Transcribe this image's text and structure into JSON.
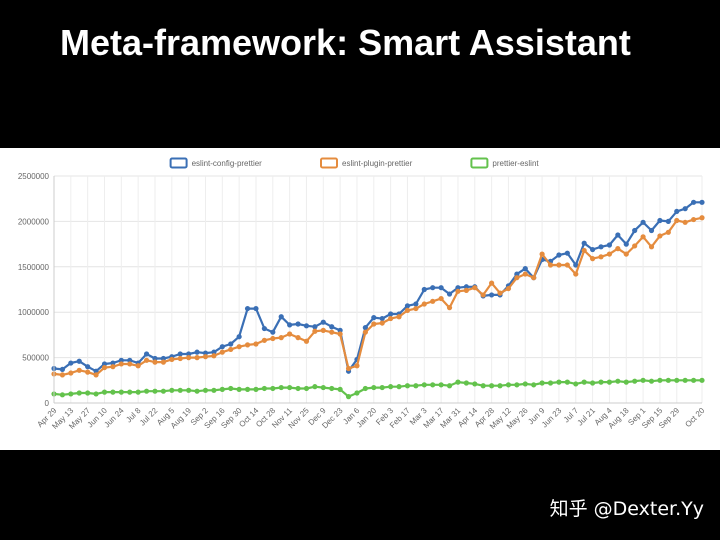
{
  "slide": {
    "title": "Meta-framework: Smart Assistant",
    "watermark": "知乎 @Dexter.Yy"
  },
  "chart_data": {
    "type": "line",
    "title": "",
    "xlabel": "",
    "ylabel": "",
    "ylim": [
      0,
      2500000
    ],
    "yticks": [
      0,
      500000,
      1000000,
      1500000,
      2000000,
      2500000
    ],
    "grid": true,
    "legend_position": "top-center",
    "x": [
      "Apr 29",
      "May 6",
      "May 13",
      "May 20",
      "May 27",
      "Jun 3",
      "Jun 10",
      "Jun 17",
      "Jun 24",
      "Jul 1",
      "Jul 8",
      "Jul 15",
      "Jul 22",
      "Jul 29",
      "Aug 5",
      "Aug 12",
      "Aug 19",
      "Aug 26",
      "Sep 2",
      "Sep 9",
      "Sep 16",
      "Sep 23",
      "Sep 30",
      "Oct 7",
      "Oct 14",
      "Oct 21",
      "Oct 28",
      "Nov 4",
      "Nov 11",
      "Nov 18",
      "Nov 25",
      "Dec 2",
      "Dec 9",
      "Dec 16",
      "Dec 23",
      "Dec 30",
      "Jan 6",
      "Jan 13",
      "Jan 20",
      "Jan 27",
      "Feb 3",
      "Feb 10",
      "Feb 17",
      "Feb 24",
      "Mar 3",
      "Mar 10",
      "Mar 17",
      "Mar 24",
      "Mar 31",
      "Apr 7",
      "Apr 14",
      "Apr 21",
      "Apr 28",
      "May 5",
      "May 12",
      "May 19",
      "May 26",
      "Jun 2",
      "Jun 9",
      "Jun 16",
      "Jun 23",
      "Jun 30",
      "Jul 7",
      "Jul 14",
      "Jul 21",
      "Jul 28",
      "Aug 4",
      "Aug 11",
      "Aug 18",
      "Aug 25",
      "Sep 1",
      "Sep 8",
      "Sep 15",
      "Sep 22",
      "Sep 29",
      "Oct 6",
      "Oct 13",
      "Oct 20"
    ],
    "tick_labels": [
      "Apr 29",
      "May 13",
      "May 27",
      "Jun 10",
      "Jun 24",
      "Jul 8",
      "Jul 22",
      "Aug 5",
      "Aug 19",
      "Sep 2",
      "Sep 16",
      "Sep 30",
      "Oct 14",
      "Oct 28",
      "Nov 11",
      "Nov 25",
      "Dec 9",
      "Dec 23",
      "Jan 6",
      "Jan 20",
      "Feb 3",
      "Feb 17",
      "Mar 3",
      "Mar 17",
      "Mar 31",
      "Apr 14",
      "Apr 28",
      "May 12",
      "May 26",
      "Jun 9",
      "Jun 23",
      "Jul 7",
      "Jul 21",
      "Aug 4",
      "Aug 18",
      "Sep 1",
      "Sep 15",
      "Sep 29",
      "Oct 20"
    ],
    "series": [
      {
        "name": "eslint-config-prettier",
        "color": "#3a6fb5",
        "values": [
          380000,
          370000,
          440000,
          460000,
          400000,
          350000,
          430000,
          440000,
          470000,
          470000,
          440000,
          540000,
          490000,
          490000,
          510000,
          540000,
          540000,
          560000,
          550000,
          560000,
          620000,
          650000,
          730000,
          1040000,
          1040000,
          820000,
          780000,
          950000,
          860000,
          870000,
          850000,
          840000,
          890000,
          840000,
          800000,
          350000,
          480000,
          830000,
          940000,
          930000,
          980000,
          980000,
          1070000,
          1090000,
          1250000,
          1270000,
          1270000,
          1200000,
          1270000,
          1280000,
          1280000,
          1180000,
          1190000,
          1190000,
          1290000,
          1420000,
          1480000,
          1380000,
          1580000,
          1560000,
          1630000,
          1650000,
          1520000,
          1760000,
          1690000,
          1720000,
          1740000,
          1850000,
          1750000,
          1900000,
          1990000,
          1900000,
          2010000,
          2000000,
          2110000,
          2140000,
          2210000,
          2210000
        ]
      },
      {
        "name": "eslint-plugin-prettier",
        "color": "#e58c3e",
        "values": [
          320000,
          310000,
          330000,
          360000,
          340000,
          310000,
          390000,
          400000,
          430000,
          430000,
          410000,
          470000,
          450000,
          450000,
          480000,
          490000,
          500000,
          500000,
          510000,
          520000,
          560000,
          590000,
          620000,
          640000,
          650000,
          690000,
          710000,
          720000,
          760000,
          720000,
          680000,
          790000,
          800000,
          780000,
          760000,
          380000,
          410000,
          780000,
          870000,
          880000,
          930000,
          950000,
          1020000,
          1040000,
          1090000,
          1120000,
          1150000,
          1050000,
          1230000,
          1240000,
          1270000,
          1190000,
          1320000,
          1210000,
          1260000,
          1380000,
          1420000,
          1380000,
          1640000,
          1520000,
          1520000,
          1520000,
          1420000,
          1680000,
          1590000,
          1610000,
          1640000,
          1700000,
          1640000,
          1730000,
          1830000,
          1720000,
          1840000,
          1880000,
          2010000,
          1990000,
          2020000,
          2040000
        ]
      },
      {
        "name": "prettier-eslint",
        "color": "#63c24c",
        "values": [
          100000,
          90000,
          100000,
          110000,
          110000,
          100000,
          120000,
          120000,
          120000,
          120000,
          120000,
          130000,
          130000,
          130000,
          140000,
          140000,
          140000,
          130000,
          140000,
          140000,
          150000,
          160000,
          150000,
          150000,
          150000,
          160000,
          160000,
          170000,
          170000,
          160000,
          160000,
          180000,
          170000,
          160000,
          150000,
          70000,
          110000,
          160000,
          170000,
          170000,
          180000,
          180000,
          190000,
          190000,
          200000,
          200000,
          200000,
          190000,
          230000,
          220000,
          210000,
          190000,
          190000,
          190000,
          200000,
          200000,
          210000,
          200000,
          220000,
          220000,
          230000,
          230000,
          210000,
          230000,
          220000,
          230000,
          230000,
          240000,
          230000,
          240000,
          250000,
          240000,
          250000,
          250000,
          250000,
          250000,
          250000,
          250000
        ]
      }
    ]
  }
}
